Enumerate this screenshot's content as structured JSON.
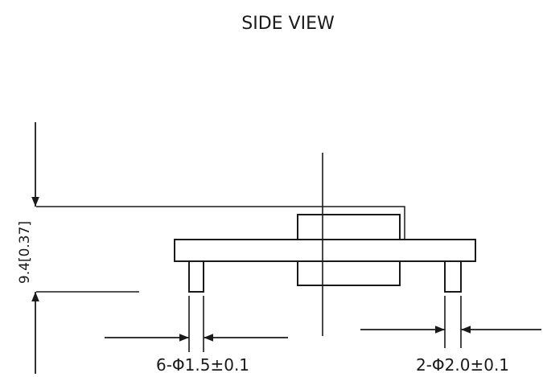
{
  "drawing": {
    "title": "SIDE VIEW",
    "dimensions": {
      "height_label": "9.4[0.37]",
      "small_pin_label": "6-Φ1.5±0.1",
      "large_pin_label": "2-Φ2.0±0.1"
    },
    "line_color": "#1a1a1a"
  }
}
